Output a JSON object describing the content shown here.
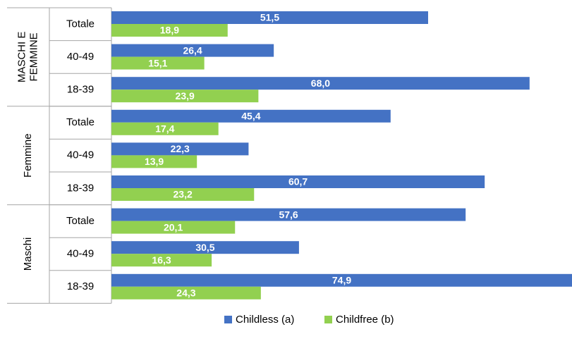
{
  "chart_data": {
    "type": "bar",
    "orientation": "horizontal",
    "xlim": [
      0,
      75
    ],
    "grid": false,
    "legend_position": "bottom",
    "groups": [
      {
        "label": "MASCHI E FEMMINE",
        "label_lines": [
          "MASCHI E",
          "FEMMINE"
        ],
        "rows": [
          {
            "category": "Totale",
            "childless": 51.5,
            "childless_label": "51,5",
            "childfree": 18.9,
            "childfree_label": "18,9"
          },
          {
            "category": "40-49",
            "childless": 26.4,
            "childless_label": "26,4",
            "childfree": 15.1,
            "childfree_label": "15,1"
          },
          {
            "category": "18-39",
            "childless": 68.0,
            "childless_label": "68,0",
            "childfree": 23.9,
            "childfree_label": "23,9"
          }
        ]
      },
      {
        "label": "Femmine",
        "label_lines": [
          "Femmine"
        ],
        "rows": [
          {
            "category": "Totale",
            "childless": 45.4,
            "childless_label": "45,4",
            "childfree": 17.4,
            "childfree_label": "17,4"
          },
          {
            "category": "40-49",
            "childless": 22.3,
            "childless_label": "22,3",
            "childfree": 13.9,
            "childfree_label": "13,9"
          },
          {
            "category": "18-39",
            "childless": 60.7,
            "childless_label": "60,7",
            "childfree": 23.2,
            "childfree_label": "23,2"
          }
        ]
      },
      {
        "label": "Maschi",
        "label_lines": [
          "Maschi"
        ],
        "rows": [
          {
            "category": "Totale",
            "childless": 57.6,
            "childless_label": "57,6",
            "childfree": 20.1,
            "childfree_label": "20,1"
          },
          {
            "category": "40-49",
            "childless": 30.5,
            "childless_label": "30,5",
            "childfree": 16.3,
            "childfree_label": "16,3"
          },
          {
            "category": "18-39",
            "childless": 74.9,
            "childless_label": "74,9",
            "childfree": 24.3,
            "childfree_label": "24,3"
          }
        ]
      }
    ],
    "series": [
      {
        "key": "childless",
        "name": "Childless (a)",
        "color": "#4472C4"
      },
      {
        "key": "childfree",
        "name": "Childfree (b)",
        "color": "#92D050"
      }
    ]
  }
}
